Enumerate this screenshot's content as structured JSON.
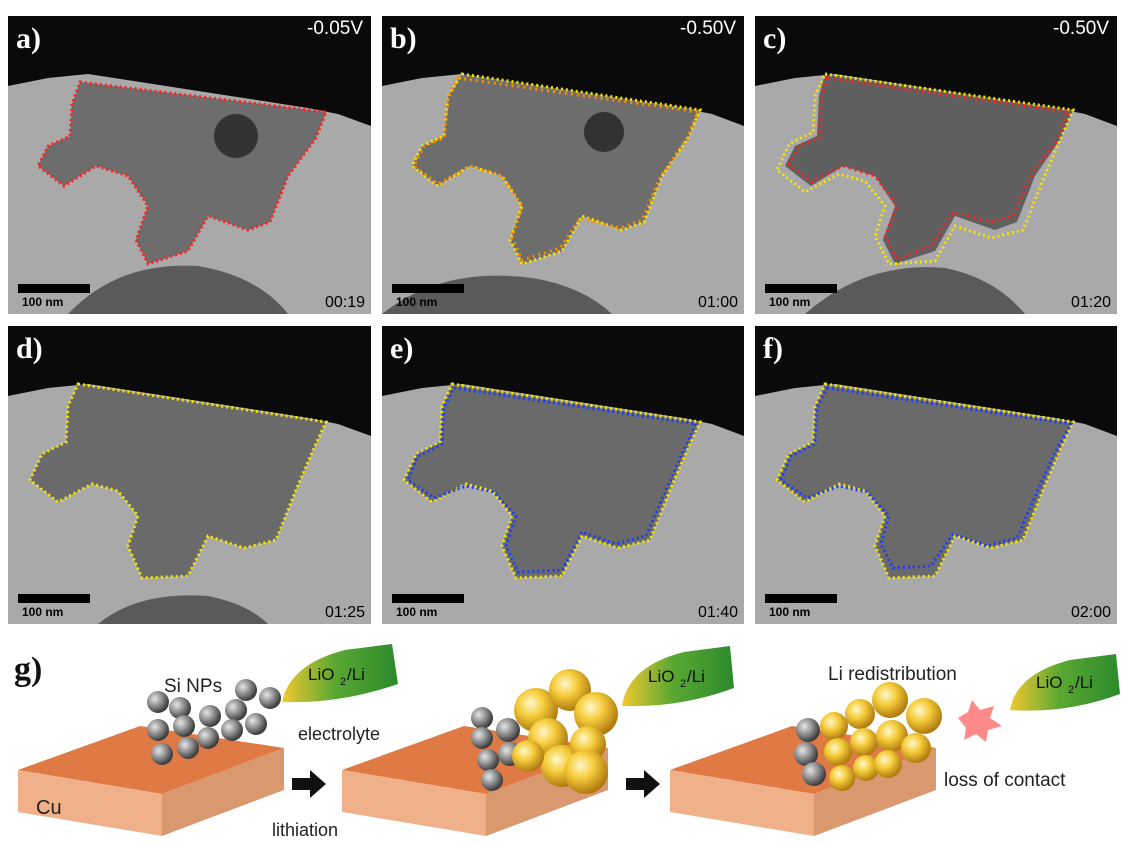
{
  "panels": [
    {
      "label": "a)",
      "voltage": "-0.05V",
      "time": "00:19",
      "scale_bar": "100 nm"
    },
    {
      "label": "b)",
      "voltage": "-0.50V",
      "time": "01:00",
      "scale_bar": "100 nm"
    },
    {
      "label": "c)",
      "voltage": "-0.50V",
      "time": "01:20",
      "scale_bar": "100 nm"
    },
    {
      "label": "d)",
      "voltage": "",
      "time": "01:25",
      "scale_bar": "100 nm"
    },
    {
      "label": "e)",
      "voltage": "",
      "time": "01:40",
      "scale_bar": "100 nm"
    },
    {
      "label": "f)",
      "voltage": "",
      "time": "02:00",
      "scale_bar": "100 nm"
    }
  ],
  "colors": {
    "red": "#ff2020",
    "orange": "#ff8c00",
    "yellow": "#f5e600",
    "blue": "#1e3cff",
    "copper_top": "#e07a45",
    "copper_side": "#f0b08a",
    "electrode_green": "#2f9a2f",
    "electrode_yellow": "#f2c830"
  },
  "schematic": {
    "label": "g)",
    "cu": "Cu",
    "si_nps": "Si NPs",
    "electrode": "LiO",
    "electrode_sub": "2",
    "electrode_suffix": "/Li",
    "electrolyte": "electrolyte",
    "lithiation": "lithiation",
    "redistribution": "Li redistribution",
    "loss": "loss of contact"
  }
}
